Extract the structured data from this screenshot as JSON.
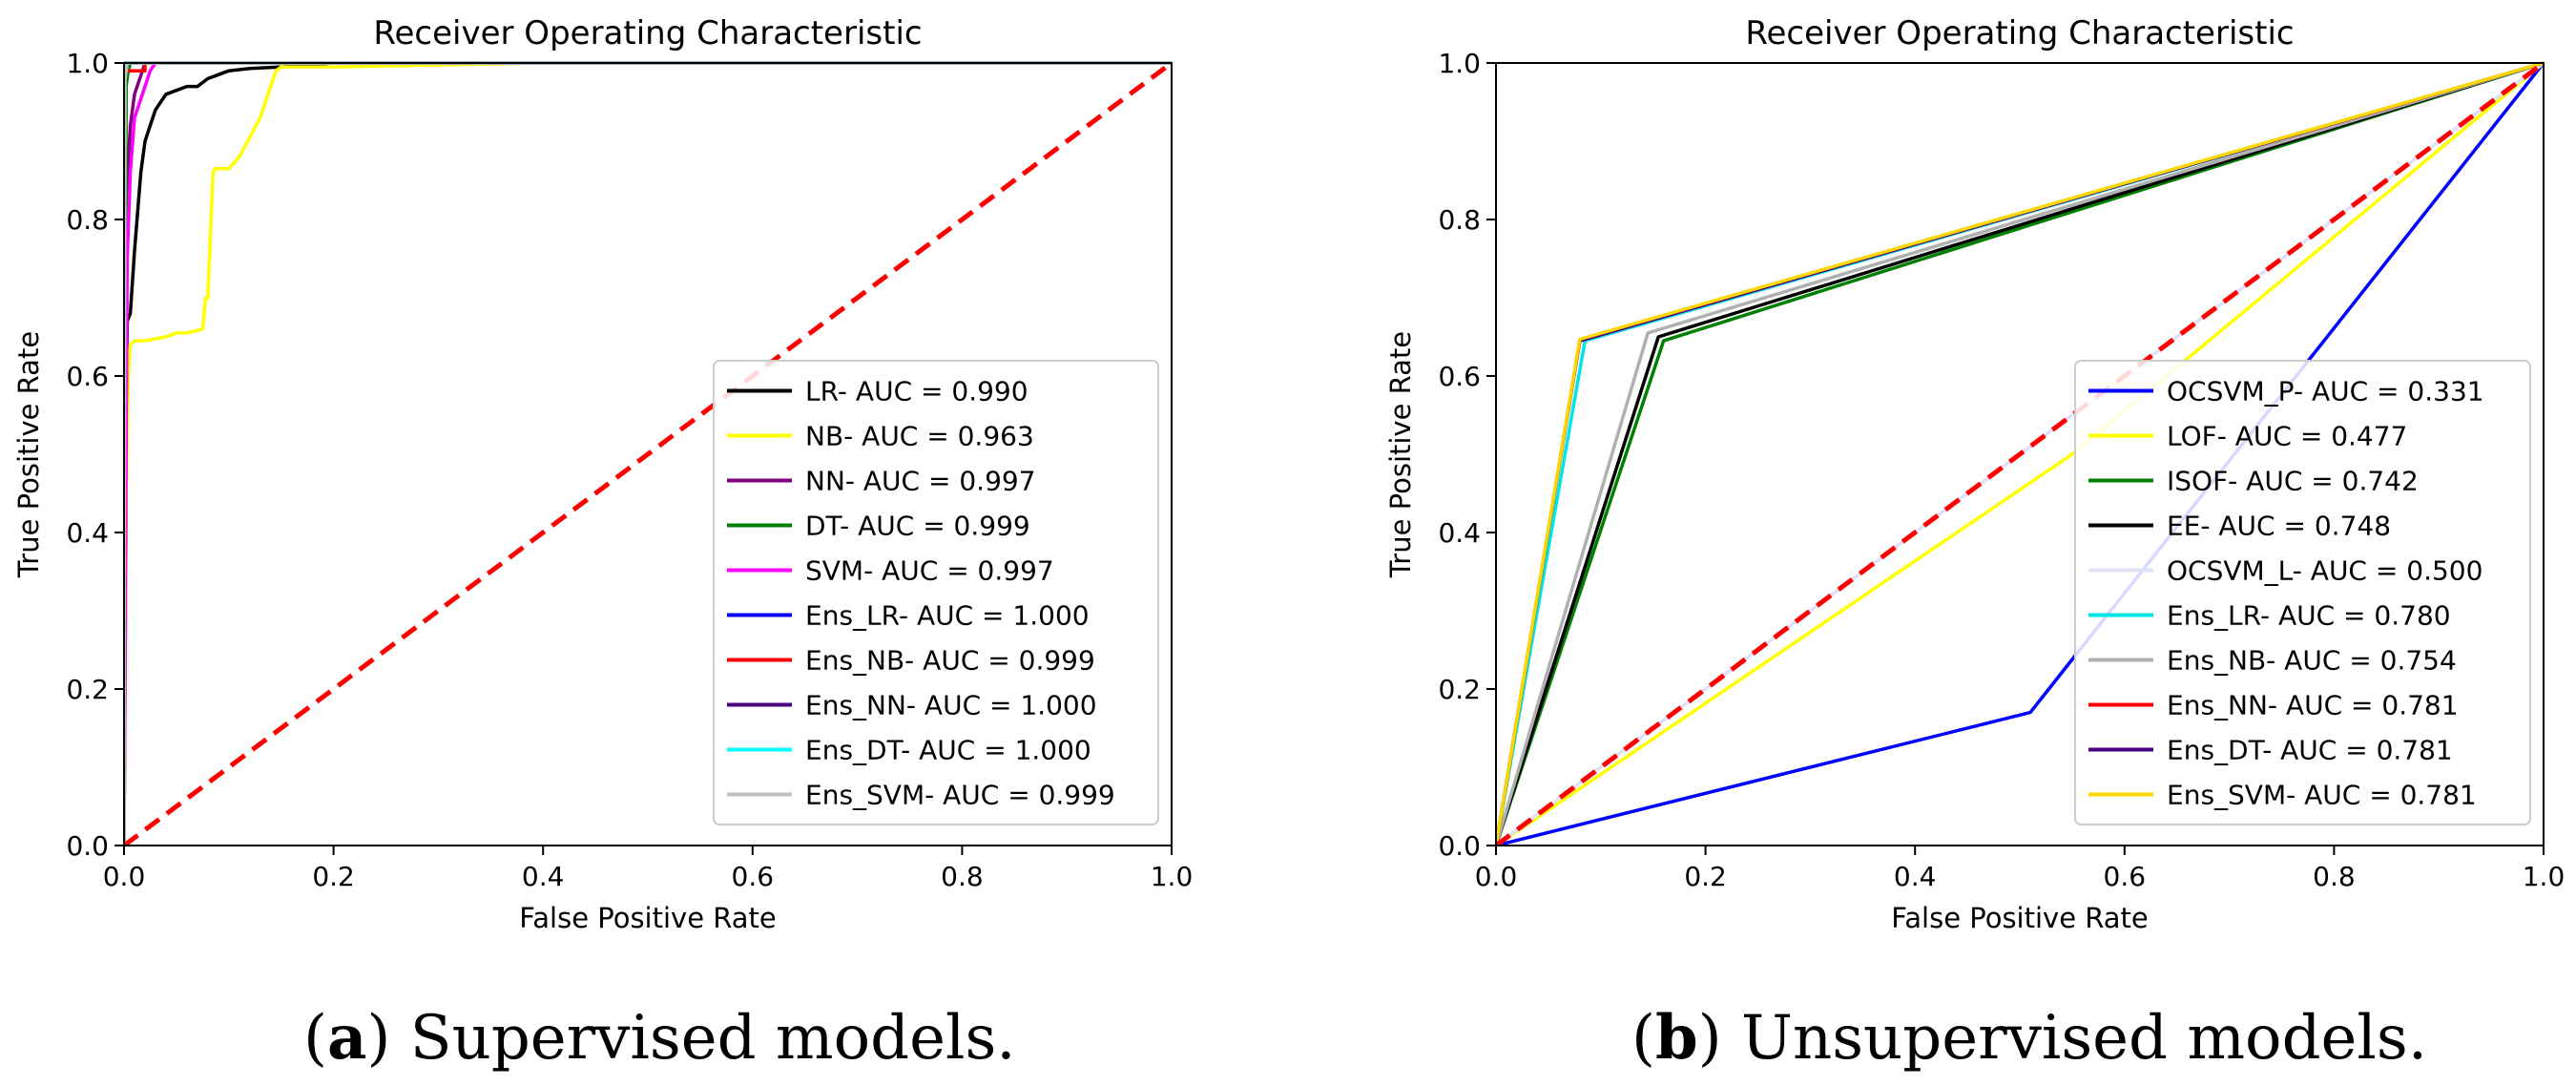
{
  "figure": {
    "captions": [
      {
        "label": "a",
        "text": "Supervised models."
      },
      {
        "label": "b",
        "text": "Unsupervised models."
      }
    ]
  },
  "chart_data": [
    {
      "type": "line",
      "title": "Receiver Operating Characteristic",
      "xlabel": "False Positive Rate",
      "ylabel": "True Positive Rate",
      "xlim": [
        0,
        1
      ],
      "ylim": [
        0,
        1
      ],
      "xticks": [
        "0.0",
        "0.2",
        "0.4",
        "0.6",
        "0.8",
        "1.0"
      ],
      "yticks": [
        "0.0",
        "0.2",
        "0.4",
        "0.6",
        "0.8",
        "1.0"
      ],
      "legend_position": "lower-right",
      "diagonal": {
        "color": "#ff0000",
        "style": "dashed"
      },
      "series": [
        {
          "name": "LR- AUC = 0.990",
          "color": "#000000",
          "x": [
            0,
            0.003,
            0.006,
            0.008,
            0.01,
            0.013,
            0.016,
            0.02,
            0.025,
            0.03,
            0.035,
            0.04,
            0.05,
            0.06,
            0.07,
            0.08,
            0.09,
            0.1,
            0.12,
            0.15,
            0.2,
            1.0
          ],
          "y": [
            0,
            0.67,
            0.68,
            0.72,
            0.76,
            0.81,
            0.86,
            0.9,
            0.92,
            0.94,
            0.95,
            0.96,
            0.965,
            0.97,
            0.97,
            0.98,
            0.985,
            0.99,
            0.993,
            0.995,
            1.0,
            1.0
          ]
        },
        {
          "name": "NB- AUC = 0.963",
          "color": "#ffff00",
          "x": [
            0,
            0.002,
            0.004,
            0.006,
            0.01,
            0.02,
            0.04,
            0.05,
            0.06,
            0.075,
            0.078,
            0.08,
            0.085,
            0.087,
            0.09,
            0.1,
            0.11,
            0.13,
            0.145,
            0.15,
            0.2,
            0.4,
            1.0
          ],
          "y": [
            0,
            0.45,
            0.6,
            0.64,
            0.645,
            0.645,
            0.65,
            0.655,
            0.655,
            0.66,
            0.7,
            0.7,
            0.86,
            0.865,
            0.865,
            0.865,
            0.88,
            0.93,
            0.99,
            0.995,
            0.995,
            1.0,
            1.0
          ]
        },
        {
          "name": "NN- AUC = 0.997",
          "color": "#800080",
          "x": [
            0,
            0.003,
            0.006,
            0.01,
            0.015,
            0.02,
            1.0
          ],
          "y": [
            0,
            0.85,
            0.92,
            0.96,
            0.98,
            1.0,
            1.0
          ]
        },
        {
          "name": "DT- AUC = 0.999",
          "color": "#008000",
          "x": [
            0,
            0.002,
            0.004,
            0.006,
            1.0
          ],
          "y": [
            0,
            0.97,
            0.99,
            1.0,
            1.0
          ]
        },
        {
          "name": "SVM- AUC = 0.997",
          "color": "#ff00ff",
          "x": [
            0,
            0.003,
            0.006,
            0.01,
            0.015,
            0.02,
            0.025,
            0.03,
            1.0
          ],
          "y": [
            0,
            0.75,
            0.86,
            0.93,
            0.95,
            0.97,
            0.99,
            1.0,
            1.0
          ]
        },
        {
          "name": "Ens_LR- AUC = 1.000",
          "color": "#0000ff",
          "x": [
            0,
            0,
            1.0
          ],
          "y": [
            0,
            1.0,
            1.0
          ]
        },
        {
          "name": "Ens_NB- AUC = 0.999",
          "color": "#ff0000",
          "x": [
            0,
            0,
            0.02,
            0.02,
            1.0
          ],
          "y": [
            0,
            0.99,
            0.99,
            1.0,
            1.0
          ]
        },
        {
          "name": "Ens_NN- AUC = 1.000",
          "color": "#4b0082",
          "x": [
            0,
            0,
            1.0
          ],
          "y": [
            0,
            1.0,
            1.0
          ]
        },
        {
          "name": "Ens_DT- AUC = 1.000",
          "color": "#00ffff",
          "x": [
            0,
            0,
            1.0
          ],
          "y": [
            0,
            1.0,
            1.0
          ]
        },
        {
          "name": "Ens_SVM- AUC = 0.999",
          "color": "#c0c0c0",
          "x": [
            0,
            0.001,
            0.003,
            1.0
          ],
          "y": [
            0,
            0.98,
            1.0,
            1.0
          ]
        }
      ]
    },
    {
      "type": "line",
      "title": "Receiver Operating Characteristic",
      "xlabel": "False Positive Rate",
      "ylabel": "True Positive Rate",
      "xlim": [
        0,
        1
      ],
      "ylim": [
        0,
        1
      ],
      "xticks": [
        "0.0",
        "0.2",
        "0.4",
        "0.6",
        "0.8",
        "1.0"
      ],
      "yticks": [
        "0.0",
        "0.2",
        "0.4",
        "0.6",
        "0.8",
        "1.0"
      ],
      "legend_position": "lower-right",
      "diagonal": {
        "color": "#ff0000",
        "style": "dashed"
      },
      "series": [
        {
          "name": "OCSVM_P- AUC = 0.331",
          "color": "#0000ff",
          "x": [
            0,
            0.51,
            1.0
          ],
          "y": [
            0,
            0.17,
            1.0
          ]
        },
        {
          "name": "LOF- AUC = 0.477",
          "color": "#ffff00",
          "x": [
            0,
            0.55,
            1.0
          ],
          "y": [
            0,
            0.5,
            1.0
          ]
        },
        {
          "name": "ISOF- AUC = 0.742",
          "color": "#008000",
          "x": [
            0,
            0.16,
            1.0
          ],
          "y": [
            0,
            0.645,
            1.0
          ]
        },
        {
          "name": "EE- AUC = 0.748",
          "color": "#000000",
          "x": [
            0,
            0.155,
            1.0
          ],
          "y": [
            0,
            0.65,
            1.0
          ]
        },
        {
          "name": "OCSVM_L- AUC = 0.500",
          "color": "#e0e0f8",
          "x": [
            0,
            1.0
          ],
          "y": [
            0,
            1.0
          ]
        },
        {
          "name": "Ens_LR- AUC = 0.780",
          "color": "#00e5e5",
          "x": [
            0,
            0.085,
            1.0
          ],
          "y": [
            0,
            0.645,
            1.0
          ]
        },
        {
          "name": "Ens_NB- AUC = 0.754",
          "color": "#b0b0b0",
          "x": [
            0,
            0.145,
            1.0
          ],
          "y": [
            0,
            0.655,
            1.0
          ]
        },
        {
          "name": "Ens_NN- AUC = 0.781",
          "color": "#ff0000",
          "x": [
            0,
            0.08,
            1.0
          ],
          "y": [
            0,
            0.645,
            1.0
          ]
        },
        {
          "name": "Ens_DT- AUC = 0.781",
          "color": "#4b0082",
          "x": [
            0,
            0.08,
            1.0
          ],
          "y": [
            0,
            0.645,
            1.0
          ]
        },
        {
          "name": "Ens_SVM- AUC = 0.781",
          "color": "#ffd700",
          "x": [
            0,
            0.08,
            1.0
          ],
          "y": [
            0,
            0.647,
            1.0
          ]
        }
      ]
    }
  ]
}
